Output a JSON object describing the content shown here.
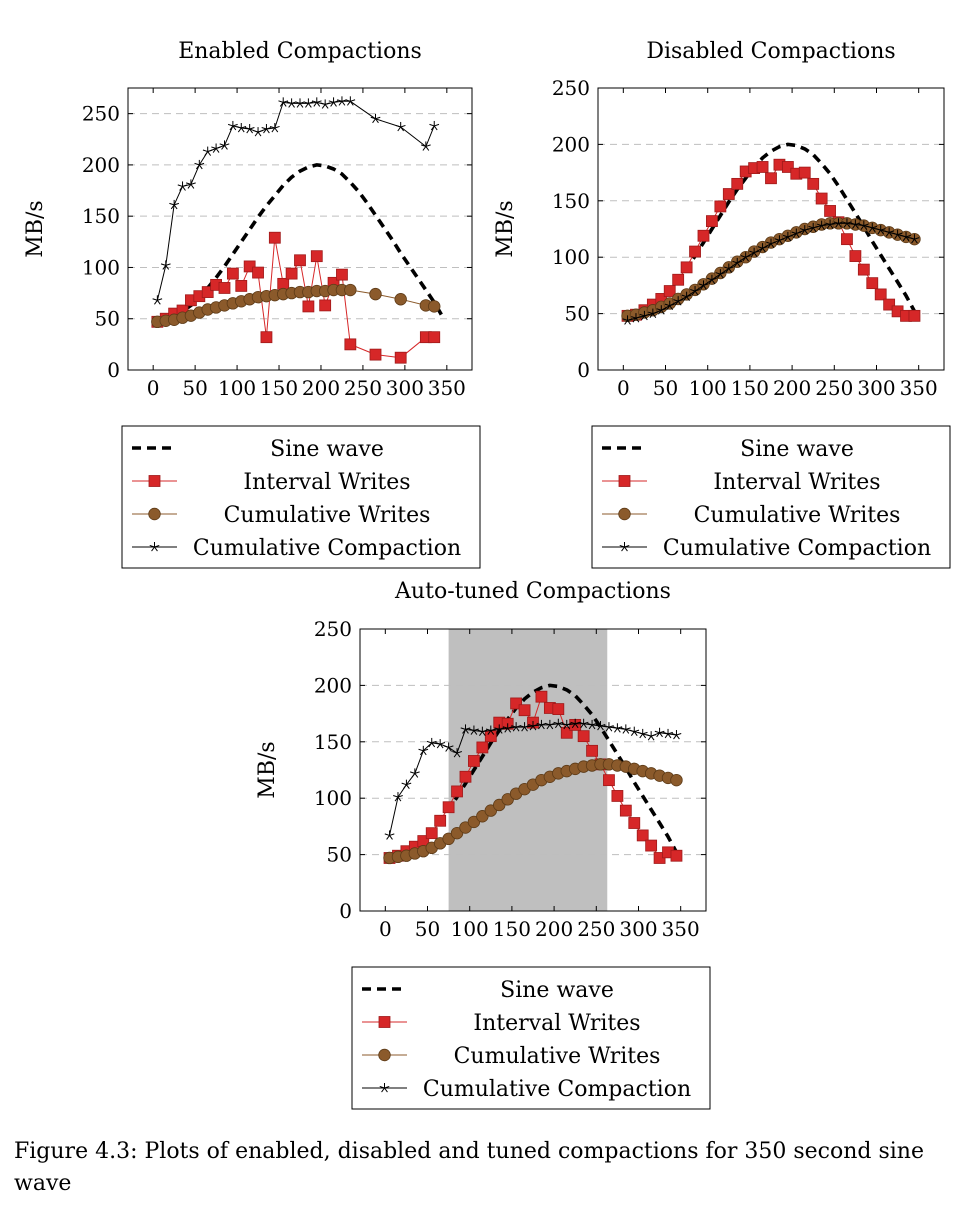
{
  "figure": {
    "caption": "Figure 4.3: Plots of enabled, disabled and tuned compactions for 350 second sine wave"
  },
  "colors": {
    "sine": "#000000",
    "interval": "#d62728",
    "interval_edge": "#a01a1a",
    "cumulative_writes": "#8b5a2b",
    "cumulative_writes_edge": "#5c3a17",
    "compaction": "#000000",
    "shade": "#bfbfbf",
    "grid": "#bfbfbf"
  },
  "chart_data": [
    {
      "type": "line",
      "title": "Enabled Compactions",
      "xlabel": "",
      "ylabel": "MB/s",
      "xlim": [
        -30,
        380
      ],
      "ylim": [
        0,
        275
      ],
      "xticks": [
        0,
        50,
        100,
        150,
        200,
        250,
        300,
        350
      ],
      "yticks": [
        0,
        50,
        100,
        150,
        200,
        250
      ],
      "grid": "horizontal dashed",
      "legend": [
        "Sine wave",
        "Interval Writes",
        "Cumulative Writes",
        "Cumulative Compaction"
      ],
      "legend_position": "below",
      "series": [
        {
          "name": "Sine wave",
          "x": [
            5,
            15,
            25,
            35,
            45,
            55,
            65,
            75,
            85,
            95,
            105,
            115,
            125,
            135,
            145,
            155,
            165,
            175,
            185,
            195,
            205,
            215,
            225,
            235,
            245,
            255,
            265,
            275,
            285,
            295,
            305,
            315,
            325,
            335,
            345
          ],
          "values": [
            48,
            49,
            52,
            57,
            63,
            71,
            80,
            90,
            101,
            113,
            125,
            137,
            149,
            160,
            170,
            180,
            188,
            194,
            198,
            200,
            199,
            196,
            191,
            183,
            174,
            163,
            151,
            139,
            127,
            114,
            102,
            90,
            78,
            66,
            52
          ]
        },
        {
          "name": "Interval Writes",
          "x": [
            5,
            15,
            25,
            35,
            45,
            55,
            65,
            75,
            85,
            95,
            105,
            115,
            125,
            135,
            145,
            155,
            165,
            175,
            185,
            195,
            205,
            215,
            225,
            235,
            265,
            295,
            325,
            335
          ],
          "values": [
            47,
            50,
            55,
            58,
            68,
            72,
            76,
            83,
            80,
            94,
            82,
            101,
            95,
            32,
            129,
            84,
            94,
            107,
            62,
            111,
            63,
            85,
            93,
            25,
            15,
            12,
            32,
            32
          ]
        },
        {
          "name": "Cumulative Writes",
          "x": [
            5,
            15,
            25,
            35,
            45,
            55,
            65,
            75,
            85,
            95,
            105,
            115,
            125,
            135,
            145,
            155,
            165,
            175,
            185,
            195,
            205,
            215,
            225,
            235,
            265,
            295,
            325,
            335
          ],
          "values": [
            47,
            48,
            49,
            51,
            53,
            56,
            59,
            61,
            63,
            65,
            67,
            69,
            71,
            72,
            73,
            74,
            75,
            76,
            76,
            77,
            77,
            78,
            78,
            78,
            74,
            69,
            63,
            62
          ]
        },
        {
          "name": "Cumulative Compaction",
          "x": [
            5,
            15,
            25,
            35,
            45,
            55,
            65,
            75,
            85,
            95,
            105,
            115,
            125,
            135,
            145,
            155,
            165,
            175,
            185,
            195,
            205,
            215,
            225,
            235,
            265,
            295,
            325,
            335
          ],
          "values": [
            68,
            102,
            161,
            179,
            181,
            200,
            213,
            216,
            219,
            238,
            236,
            235,
            232,
            235,
            236,
            261,
            260,
            260,
            260,
            261,
            259,
            261,
            262,
            262,
            245,
            237,
            218,
            238
          ]
        }
      ]
    },
    {
      "type": "line",
      "title": "Disabled Compactions",
      "xlabel": "",
      "ylabel": "MB/s",
      "xlim": [
        -30,
        380
      ],
      "ylim": [
        0,
        250
      ],
      "xticks": [
        0,
        50,
        100,
        150,
        200,
        250,
        300,
        350
      ],
      "yticks": [
        0,
        50,
        100,
        150,
        200,
        250
      ],
      "grid": "horizontal dashed",
      "legend": [
        "Sine wave",
        "Interval Writes",
        "Cumulative Writes",
        "Cumulative Compaction"
      ],
      "legend_position": "below",
      "series": [
        {
          "name": "Sine wave",
          "x": [
            5,
            15,
            25,
            35,
            45,
            55,
            65,
            75,
            85,
            95,
            105,
            115,
            125,
            135,
            145,
            155,
            165,
            175,
            185,
            195,
            205,
            215,
            225,
            235,
            245,
            255,
            265,
            275,
            285,
            295,
            305,
            315,
            325,
            335,
            345
          ],
          "values": [
            48,
            49,
            52,
            57,
            63,
            71,
            80,
            90,
            101,
            113,
            125,
            137,
            149,
            160,
            170,
            180,
            188,
            194,
            198,
            200,
            199,
            196,
            191,
            183,
            174,
            163,
            151,
            139,
            127,
            114,
            102,
            90,
            78,
            66,
            52
          ]
        },
        {
          "name": "Interval Writes",
          "x": [
            5,
            15,
            25,
            35,
            45,
            55,
            65,
            75,
            85,
            95,
            105,
            115,
            125,
            135,
            145,
            155,
            165,
            175,
            185,
            195,
            205,
            215,
            225,
            235,
            245,
            255,
            265,
            275,
            285,
            295,
            305,
            315,
            325,
            335,
            345
          ],
          "values": [
            48,
            49,
            53,
            58,
            63,
            70,
            80,
            91,
            105,
            119,
            132,
            145,
            156,
            165,
            176,
            179,
            180,
            170,
            182,
            180,
            174,
            175,
            165,
            152,
            141,
            131,
            116,
            101,
            89,
            77,
            67,
            58,
            52,
            48,
            48
          ]
        },
        {
          "name": "Cumulative Writes",
          "x": [
            5,
            15,
            25,
            35,
            45,
            55,
            65,
            75,
            85,
            95,
            105,
            115,
            125,
            135,
            145,
            155,
            165,
            175,
            185,
            195,
            205,
            215,
            225,
            235,
            245,
            255,
            265,
            275,
            285,
            295,
            305,
            315,
            325,
            335,
            345
          ],
          "values": [
            48,
            49,
            51,
            53,
            56,
            59,
            63,
            67,
            71,
            76,
            81,
            86,
            91,
            96,
            100,
            105,
            109,
            113,
            116,
            119,
            122,
            125,
            127,
            129,
            130,
            130,
            130,
            129,
            128,
            126,
            124,
            122,
            120,
            118,
            116
          ]
        },
        {
          "name": "Cumulative Compaction",
          "x": [
            5,
            15,
            25,
            35,
            45,
            55,
            65,
            75,
            85,
            95,
            105,
            115,
            125,
            135,
            145,
            155,
            165,
            175,
            185,
            195,
            205,
            215,
            225,
            235,
            245,
            255,
            265,
            275,
            285,
            295,
            305,
            315,
            325,
            335,
            345
          ],
          "values": [
            44,
            46,
            48,
            50,
            53,
            57,
            61,
            65,
            70,
            75,
            80,
            85,
            90,
            95,
            100,
            104,
            108,
            112,
            115,
            118,
            121,
            124,
            126,
            128,
            129,
            130,
            130,
            129,
            128,
            126,
            124,
            122,
            120,
            118,
            116
          ]
        }
      ]
    },
    {
      "type": "line",
      "title": "Auto-tuned Compactions",
      "xlabel": "",
      "ylabel": "MB/s",
      "xlim": [
        -30,
        380
      ],
      "ylim": [
        0,
        250
      ],
      "xticks": [
        0,
        50,
        100,
        150,
        200,
        250,
        300,
        350
      ],
      "yticks": [
        0,
        50,
        100,
        150,
        200,
        250
      ],
      "grid": "horizontal dashed",
      "shaded_x_range": [
        75,
        263
      ],
      "legend": [
        "Sine wave",
        "Interval Writes",
        "Cumulative Writes",
        "Cumulative Compaction"
      ],
      "legend_position": "below",
      "series": [
        {
          "name": "Sine wave",
          "x": [
            5,
            15,
            25,
            35,
            45,
            55,
            65,
            75,
            85,
            95,
            105,
            115,
            125,
            135,
            145,
            155,
            165,
            175,
            185,
            195,
            205,
            215,
            225,
            235,
            245,
            255,
            265,
            275,
            285,
            295,
            305,
            315,
            325,
            335,
            345
          ],
          "values": [
            48,
            49,
            52,
            57,
            63,
            71,
            80,
            90,
            101,
            113,
            125,
            137,
            149,
            160,
            170,
            180,
            188,
            194,
            198,
            200,
            199,
            196,
            191,
            183,
            174,
            163,
            151,
            139,
            127,
            114,
            102,
            90,
            78,
            66,
            52
          ]
        },
        {
          "name": "Interval Writes",
          "x": [
            5,
            15,
            25,
            35,
            45,
            55,
            65,
            75,
            85,
            95,
            105,
            115,
            125,
            135,
            145,
            155,
            165,
            175,
            185,
            195,
            205,
            215,
            225,
            235,
            245,
            255,
            265,
            275,
            285,
            295,
            305,
            315,
            325,
            335,
            345
          ],
          "values": [
            47,
            49,
            53,
            57,
            62,
            69,
            80,
            92,
            106,
            119,
            133,
            145,
            155,
            167,
            166,
            184,
            178,
            167,
            190,
            180,
            179,
            158,
            165,
            155,
            142,
            130,
            116,
            102,
            89,
            78,
            67,
            58,
            47,
            52,
            49
          ]
        },
        {
          "name": "Cumulative Writes",
          "x": [
            5,
            15,
            25,
            35,
            45,
            55,
            65,
            75,
            85,
            95,
            105,
            115,
            125,
            135,
            145,
            155,
            165,
            175,
            185,
            195,
            205,
            215,
            225,
            235,
            245,
            255,
            265,
            275,
            285,
            295,
            305,
            315,
            325,
            335,
            345
          ],
          "values": [
            47,
            48,
            49,
            51,
            53,
            56,
            60,
            64,
            69,
            74,
            79,
            84,
            89,
            94,
            99,
            104,
            108,
            112,
            116,
            119,
            122,
            124,
            126,
            128,
            129,
            130,
            130,
            129,
            128,
            126,
            124,
            122,
            120,
            118,
            116
          ]
        },
        {
          "name": "Cumulative Compaction",
          "x": [
            5,
            15,
            25,
            35,
            45,
            55,
            65,
            75,
            85,
            95,
            105,
            115,
            125,
            135,
            145,
            155,
            165,
            175,
            185,
            195,
            205,
            215,
            225,
            235,
            245,
            255,
            265,
            275,
            285,
            295,
            305,
            315,
            325,
            335,
            345
          ],
          "values": [
            67,
            101,
            112,
            122,
            142,
            149,
            148,
            145,
            140,
            161,
            160,
            159,
            160,
            161,
            162,
            163,
            163,
            164,
            165,
            165,
            166,
            165,
            166,
            166,
            165,
            164,
            163,
            162,
            161,
            159,
            157,
            155,
            158,
            157,
            156
          ]
        }
      ]
    }
  ]
}
